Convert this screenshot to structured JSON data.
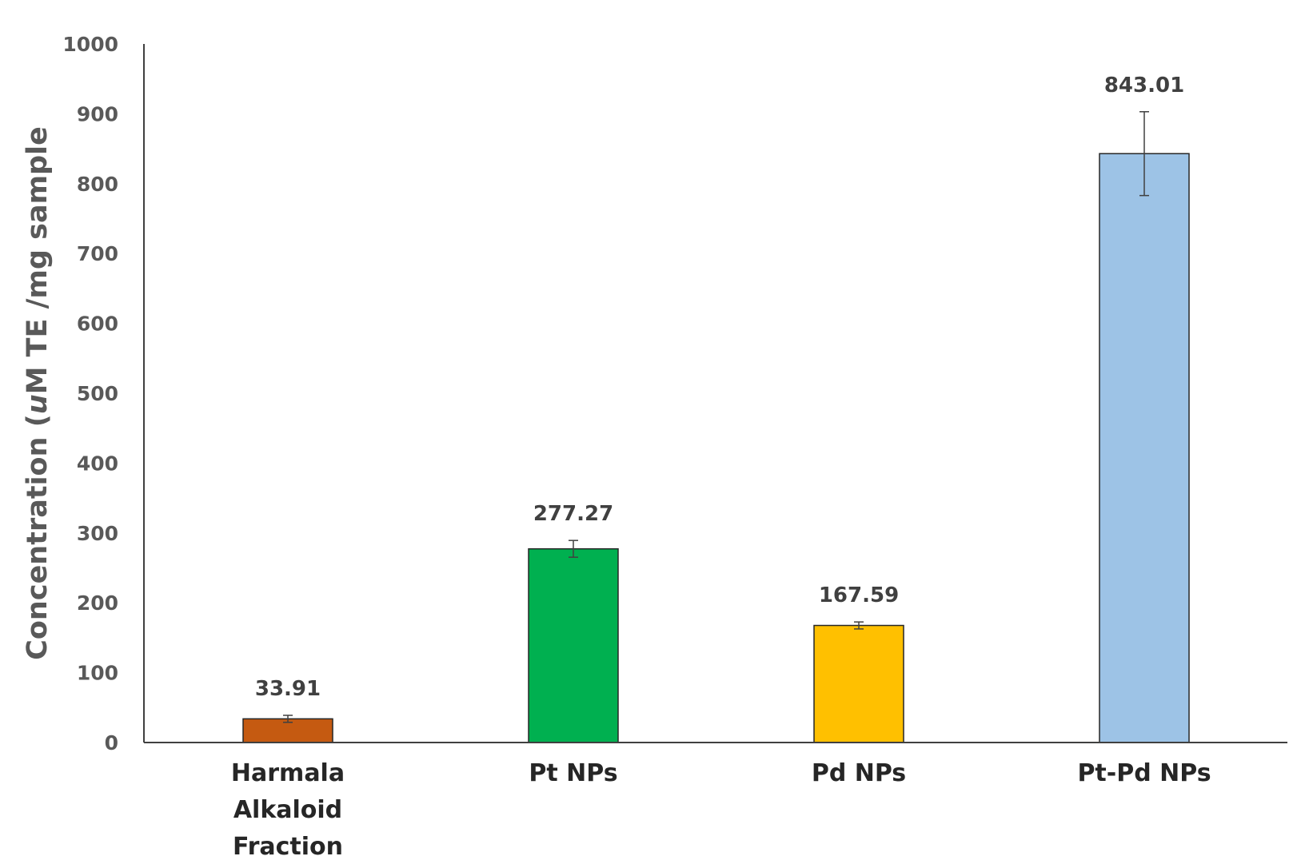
{
  "chart_data": {
    "type": "bar",
    "title": "",
    "xlabel": "",
    "ylabel_parts": [
      "Concentration (",
      "u",
      "M TE /mg sample"
    ],
    "categories": [
      [
        "Harmala",
        "Alkaloid",
        "Fraction"
      ],
      [
        "Pt NPs"
      ],
      [
        "Pd NPs"
      ],
      [
        "Pt-Pd NPs"
      ]
    ],
    "values": [
      33.91,
      277.27,
      167.59,
      843.01
    ],
    "value_labels": [
      "33.91",
      "277.27",
      "167.59",
      "843.01"
    ],
    "error_bars": [
      5,
      12,
      5,
      60
    ],
    "colors": [
      "#C55A11",
      "#00B050",
      "#FFC000",
      "#9DC3E6"
    ],
    "ylim": [
      0,
      1000
    ],
    "yticks": [
      0,
      100,
      200,
      300,
      400,
      500,
      600,
      700,
      800,
      900,
      1000
    ],
    "grid": false,
    "legend": "none"
  }
}
